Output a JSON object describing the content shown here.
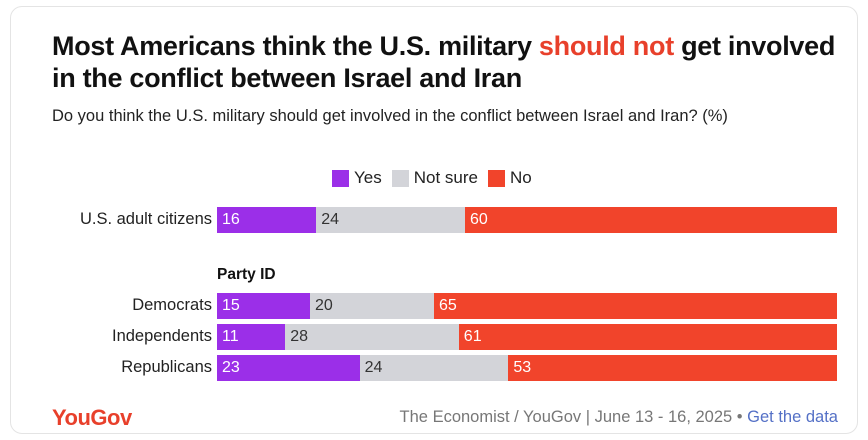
{
  "title": {
    "pre": "Most Americans think the U.S. military ",
    "highlight": "should not",
    "post": " get involved in the conflict between Israel and Iran"
  },
  "subtitle": "Do you think the U.S. military should get involved in the conflict between Israel and Iran? (%)",
  "colors": {
    "yes": "#9b2fe8",
    "not_sure": "#d3d4d9",
    "no": "#f1442b",
    "highlight": "#e8402b",
    "logo": "#e8402b",
    "link": "#5470c6"
  },
  "footer": {
    "logo": "YouGov",
    "source": "The Economist / YouGov | June 13 - 16, 2025 • ",
    "link": "Get the data"
  },
  "chart_data": {
    "type": "bar",
    "stacked": true,
    "orientation": "horizontal",
    "title": "Most Americans think the U.S. military should not get involved in the conflict between Israel and Iran",
    "subtitle": "Do you think the U.S. military should get involved in the conflict between Israel and Iran? (%)",
    "legend": [
      "Yes",
      "Not sure",
      "No"
    ],
    "legend_position": "top",
    "section_label": "Party ID",
    "categories": [
      "U.S. adult citizens",
      "Democrats",
      "Independents",
      "Republicans"
    ],
    "series": [
      {
        "name": "Yes",
        "values": [
          16,
          15,
          11,
          23
        ]
      },
      {
        "name": "Not sure",
        "values": [
          24,
          20,
          28,
          24
        ]
      },
      {
        "name": "No",
        "values": [
          60,
          65,
          61,
          53
        ]
      }
    ],
    "xlim": [
      0,
      100
    ]
  }
}
